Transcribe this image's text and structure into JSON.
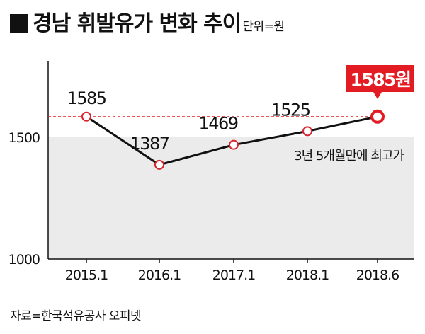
{
  "title": "경남 휘발유가 변화 추이",
  "unit_note": "단위=원",
  "source": "자료=한국석유공사 오피넷",
  "colors": {
    "line": "#111111",
    "highlight": "#e31b23",
    "band": "#ebebeb",
    "reference": "#e31b23"
  },
  "chart_data": {
    "type": "line",
    "categories": [
      "2015.1",
      "2016.1",
      "2017.1",
      "2018.1",
      "2018.6"
    ],
    "values": [
      1585,
      1387,
      1469,
      1525,
      1585
    ],
    "value_labels": [
      "1585",
      "1387",
      "1469",
      "1525",
      "1585원"
    ],
    "yticks": [
      1000,
      1500
    ],
    "ylim": [
      1000,
      1700
    ],
    "reference_line": 1585,
    "highlight_index": 4,
    "annotation": "3년 5개월만에 최고가"
  }
}
